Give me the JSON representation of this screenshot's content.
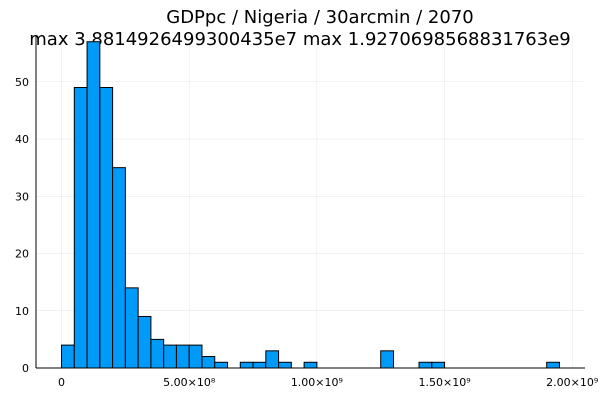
{
  "chart_data": {
    "type": "bar",
    "title": "GDPpc / Nigeria / 30arcmin / 2070",
    "subtitle": "max 3.8814926499300435e7  max 1.9270698568831763e9",
    "bin_width": 50000000,
    "bin_starts": [
      0,
      50000000,
      100000000,
      150000000,
      200000000,
      250000000,
      300000000,
      350000000,
      400000000,
      450000000,
      500000000,
      550000000,
      600000000,
      650000000,
      700000000,
      750000000,
      800000000,
      850000000,
      900000000,
      950000000,
      1000000000,
      1050000000,
      1100000000,
      1150000000,
      1200000000,
      1250000000,
      1300000000,
      1350000000,
      1400000000,
      1450000000,
      1500000000,
      1550000000,
      1600000000,
      1650000000,
      1700000000,
      1750000000,
      1800000000,
      1850000000,
      1900000000,
      1950000000
    ],
    "counts": [
      4,
      49,
      57,
      49,
      35,
      14,
      9,
      5,
      4,
      4,
      4,
      2,
      1,
      0,
      1,
      1,
      3,
      1,
      0,
      1,
      0,
      0,
      0,
      0,
      0,
      3,
      0,
      0,
      1,
      1,
      0,
      0,
      0,
      0,
      0,
      0,
      0,
      0,
      1,
      0
    ],
    "xlim": [
      -100000000,
      2050000000
    ],
    "ylim": [
      0,
      58
    ],
    "x_ticks": [
      {
        "value": 0,
        "label": "0"
      },
      {
        "value": 500000000,
        "label": "5.00×10⁸"
      },
      {
        "value": 1000000000,
        "label": "1.00×10⁹"
      },
      {
        "value": 1500000000,
        "label": "1.50×10⁹"
      },
      {
        "value": 2000000000,
        "label": "2.00×10⁹"
      }
    ],
    "y_ticks": [
      {
        "value": 0,
        "label": "0"
      },
      {
        "value": 10,
        "label": "10"
      },
      {
        "value": 20,
        "label": "20"
      },
      {
        "value": 30,
        "label": "30"
      },
      {
        "value": 40,
        "label": "40"
      },
      {
        "value": 50,
        "label": "50"
      }
    ],
    "grid": true,
    "legend": false,
    "bar_color": "#009af9"
  }
}
